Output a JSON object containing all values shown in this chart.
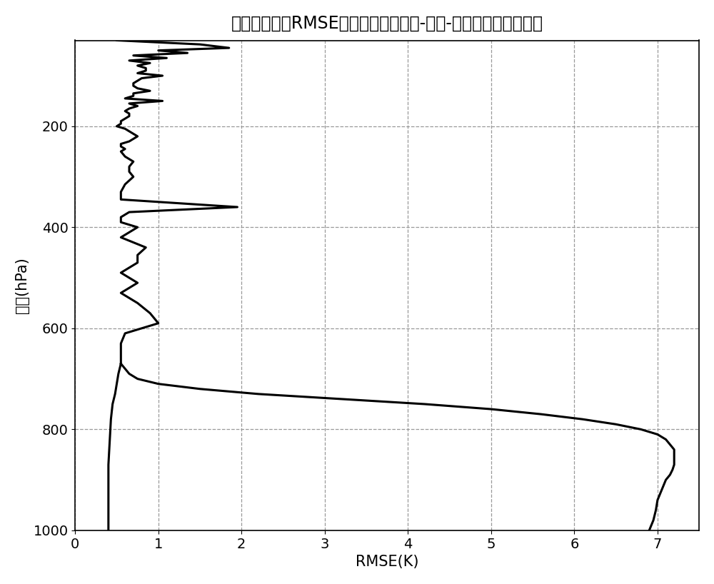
{
  "title": "大气温度反演RMSE廓线（可见度函数-亮温-大气温度两步反演）",
  "xlabel": "RMSE(K)",
  "ylabel": "压强(hPa)",
  "xlim": [
    0,
    7.5
  ],
  "ylim": [
    1000,
    30
  ],
  "xticks": [
    0,
    1,
    2,
    3,
    4,
    5,
    6,
    7
  ],
  "yticks": [
    200,
    400,
    600,
    800,
    1000
  ],
  "background_color": "#ffffff",
  "line_color": "#000000",
  "line_width": 2.2,
  "grid_color": "#999999",
  "grid_style": "--",
  "title_fontsize": 17,
  "label_fontsize": 15,
  "tick_fontsize": 14,
  "p_zigzag": [
    30,
    38,
    45,
    50,
    55,
    60,
    65,
    70,
    75,
    80,
    85,
    90,
    95,
    100,
    105,
    110,
    115,
    120,
    125,
    130,
    135,
    140,
    145,
    150,
    155,
    160,
    165,
    170,
    175,
    180,
    185,
    190,
    195,
    200,
    205,
    210,
    215,
    220,
    225,
    230,
    235,
    240,
    245,
    250,
    260,
    270,
    280,
    290,
    300,
    315,
    330,
    345,
    360,
    370,
    380,
    390,
    400,
    420,
    440,
    455,
    470,
    490,
    510,
    530,
    550,
    570,
    590,
    610,
    630,
    650,
    670
  ],
  "rmse_zigzag": [
    0.5,
    1.5,
    1.85,
    1.0,
    1.35,
    0.7,
    1.1,
    0.65,
    0.9,
    0.75,
    0.85,
    0.85,
    0.75,
    1.05,
    0.8,
    0.75,
    0.7,
    0.7,
    0.75,
    0.9,
    0.7,
    0.7,
    0.6,
    1.05,
    0.65,
    0.75,
    0.65,
    0.6,
    0.65,
    0.65,
    0.6,
    0.55,
    0.55,
    0.5,
    0.6,
    0.65,
    0.7,
    0.75,
    0.7,
    0.65,
    0.55,
    0.55,
    0.6,
    0.55,
    0.6,
    0.7,
    0.65,
    0.65,
    0.7,
    0.6,
    0.55,
    0.55,
    1.95,
    0.65,
    0.55,
    0.55,
    0.75,
    0.55,
    0.85,
    0.75,
    0.75,
    0.55,
    0.75,
    0.55,
    0.75,
    0.9,
    1.0,
    0.6,
    0.55,
    0.55,
    0.55
  ],
  "p_envelope_outer": [
    670,
    680,
    690,
    700,
    710,
    720,
    730,
    740,
    750,
    760,
    770,
    780,
    790,
    800,
    810,
    820,
    830,
    840,
    850,
    860,
    870,
    880,
    890,
    900,
    920,
    940,
    960,
    980,
    1000
  ],
  "rmse_envelope_outer": [
    0.55,
    0.6,
    0.65,
    0.75,
    1.0,
    1.5,
    2.2,
    3.2,
    4.2,
    5.0,
    5.6,
    6.1,
    6.5,
    6.8,
    7.0,
    7.1,
    7.15,
    7.2,
    7.2,
    7.2,
    7.2,
    7.18,
    7.15,
    7.1,
    7.05,
    7.0,
    6.98,
    6.95,
    6.9
  ],
  "p_envelope_inner": [
    670,
    690,
    710,
    730,
    750,
    780,
    810,
    840,
    870,
    900,
    940,
    970,
    1000
  ],
  "rmse_envelope_inner": [
    0.55,
    0.52,
    0.5,
    0.48,
    0.45,
    0.43,
    0.42,
    0.41,
    0.4,
    0.4,
    0.4,
    0.4,
    0.4
  ]
}
